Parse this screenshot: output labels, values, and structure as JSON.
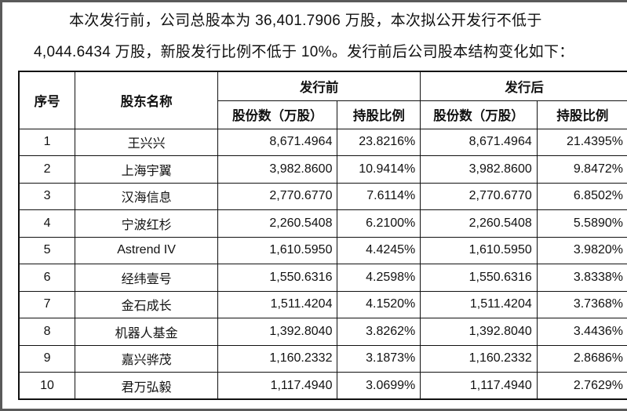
{
  "intro": {
    "line1": "本次发行前，公司总股本为 36,401.7906 万股，本次拟公开发行不低于",
    "line2": "4,044.6434 万股，新股发行比例不低于 10%。发行前后公司股本结构变化如下："
  },
  "table": {
    "headers": {
      "index": "序号",
      "name": "股东名称",
      "before": "发行前",
      "after": "发行后",
      "shares": "股份数（万股）",
      "ratio": "持股比例"
    },
    "rows": [
      {
        "no": "1",
        "name": "王兴兴",
        "before_shares": "8,671.4964",
        "before_ratio": "23.8216%",
        "after_shares": "8,671.4964",
        "after_ratio": "21.4395%"
      },
      {
        "no": "2",
        "name": "上海宇翼",
        "before_shares": "3,982.8600",
        "before_ratio": "10.9414%",
        "after_shares": "3,982.8600",
        "after_ratio": "9.8472%"
      },
      {
        "no": "3",
        "name": "汉海信息",
        "before_shares": "2,770.6770",
        "before_ratio": "7.6114%",
        "after_shares": "2,770.6770",
        "after_ratio": "6.8502%"
      },
      {
        "no": "4",
        "name": "宁波红杉",
        "before_shares": "2,260.5408",
        "before_ratio": "6.2100%",
        "after_shares": "2,260.5408",
        "after_ratio": "5.5890%"
      },
      {
        "no": "5",
        "name": "Astrend IV",
        "before_shares": "1,610.5950",
        "before_ratio": "4.4245%",
        "after_shares": "1,610.5950",
        "after_ratio": "3.9820%"
      },
      {
        "no": "6",
        "name": "经纬壹号",
        "before_shares": "1,550.6316",
        "before_ratio": "4.2598%",
        "after_shares": "1,550.6316",
        "after_ratio": "3.8338%"
      },
      {
        "no": "7",
        "name": "金石成长",
        "before_shares": "1,511.4204",
        "before_ratio": "4.1520%",
        "after_shares": "1,511.4204",
        "after_ratio": "3.7368%"
      },
      {
        "no": "8",
        "name": "机器人基金",
        "before_shares": "1,392.8040",
        "before_ratio": "3.8262%",
        "after_shares": "1,392.8040",
        "after_ratio": "3.4436%"
      },
      {
        "no": "9",
        "name": "嘉兴骅茂",
        "before_shares": "1,160.2332",
        "before_ratio": "3.1873%",
        "after_shares": "1,160.2332",
        "after_ratio": "2.8686%"
      },
      {
        "no": "10",
        "name": "君万弘毅",
        "before_shares": "1,117.4940",
        "before_ratio": "3.0699%",
        "after_shares": "1,117.4940",
        "after_ratio": "2.7629%"
      }
    ]
  }
}
